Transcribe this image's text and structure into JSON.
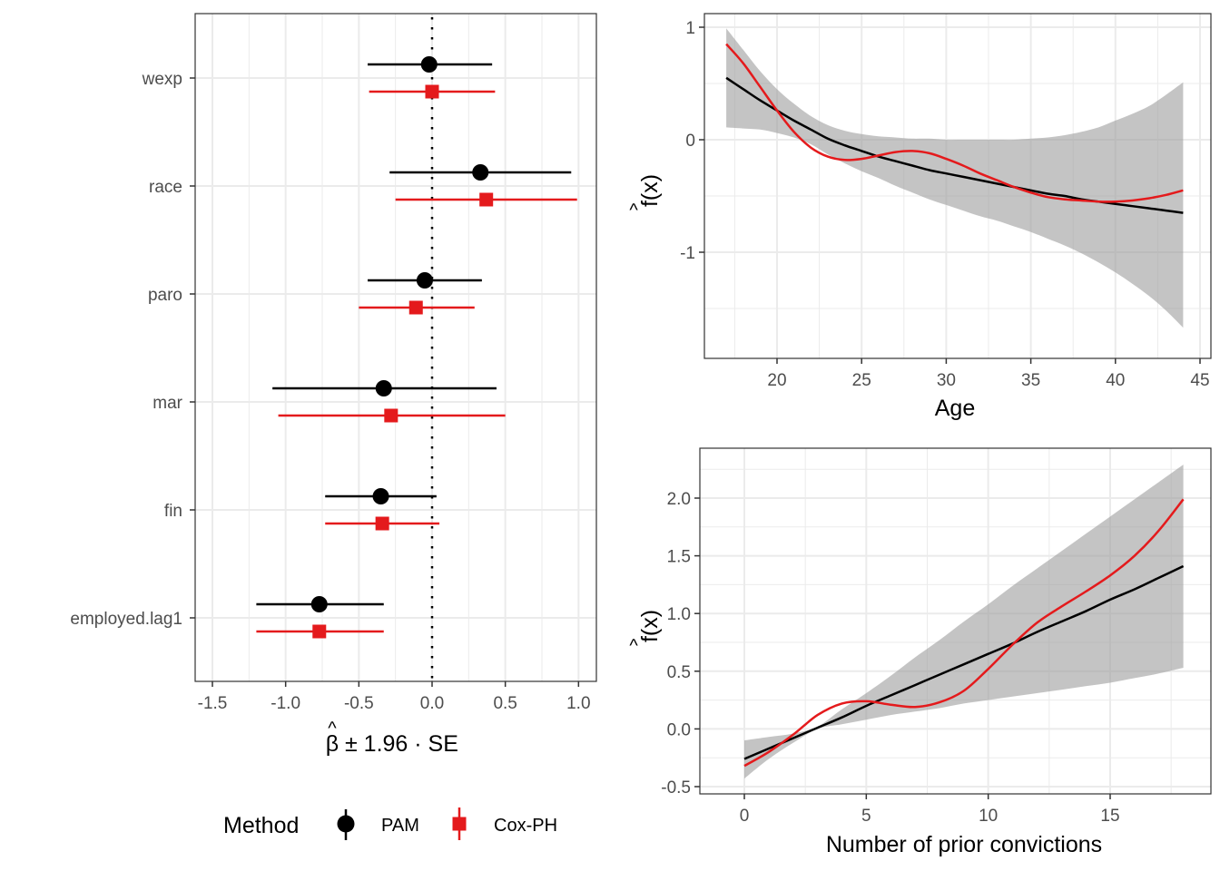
{
  "colors": {
    "pam": "#000000",
    "cox": "#E41A1C",
    "ribbon": "#BEBEBE",
    "grid": "#EBEBEB",
    "panel_border": "#333333",
    "tick_text": "#4D4D4D"
  },
  "chart_data": [
    {
      "id": "coef-plot",
      "type": "scatter",
      "subtype": "dot-and-whisker",
      "title": "",
      "xlabel": "β̂ ± 1.96 · SE",
      "xlabel_parts": {
        "beta": "β",
        "hat": "^",
        "rest": "± 1.96 · SE"
      },
      "ylabel": "",
      "xlim": [
        -1.62,
        1.12
      ],
      "xticks": [
        -1.5,
        -1.0,
        -0.5,
        0.0,
        0.5,
        1.0
      ],
      "xtick_labels": [
        "-1.5",
        "-1.0",
        "-0.5",
        "0.0",
        "0.5",
        "1.0"
      ],
      "categories": [
        "wexp",
        "race",
        "paro",
        "mar",
        "fin",
        "employed.lag1"
      ],
      "reference_line": {
        "x": 0,
        "style": "dotted"
      },
      "grid": true,
      "series": [
        {
          "name": "PAM",
          "marker": "circle",
          "estimates": [
            -0.02,
            0.33,
            -0.05,
            -0.33,
            -0.35,
            -0.77
          ],
          "lower": [
            -0.44,
            -0.29,
            -0.44,
            -1.09,
            -0.73,
            -1.2
          ],
          "upper": [
            0.41,
            0.95,
            0.34,
            0.44,
            0.03,
            -0.33
          ]
        },
        {
          "name": "Cox-PH",
          "marker": "square",
          "estimates": [
            0.0,
            0.37,
            -0.11,
            -0.28,
            -0.34,
            -0.77
          ],
          "lower": [
            -0.43,
            -0.25,
            -0.5,
            -1.05,
            -0.73,
            -1.2
          ],
          "upper": [
            0.43,
            0.99,
            0.29,
            0.5,
            0.05,
            -0.33
          ]
        }
      ],
      "legend": {
        "title": "Method",
        "position": "bottom",
        "entries": [
          "PAM",
          "Cox-PH"
        ]
      }
    },
    {
      "id": "age-smooth",
      "type": "line",
      "title": "",
      "xlabel": "Age",
      "ylabel": "f̂(x)",
      "ylabel_parts": {
        "f": "f(x)",
        "hat": "^"
      },
      "xlim": [
        15.4,
        45.6
      ],
      "ylim": [
        -1.9,
        1.12
      ],
      "xticks": [
        20,
        25,
        30,
        35,
        40,
        45
      ],
      "yticks": [
        -1,
        0,
        1
      ],
      "ytick_labels": [
        "-1",
        "0",
        "1"
      ],
      "grid": true,
      "x": [
        17,
        18,
        19,
        20,
        21,
        22,
        23,
        24,
        25,
        26,
        27,
        28,
        29,
        30,
        31,
        32,
        33,
        34,
        35,
        36,
        37,
        38,
        39,
        40,
        41,
        42,
        43,
        44
      ],
      "series": [
        {
          "name": "PAM",
          "values": [
            0.55,
            0.45,
            0.35,
            0.26,
            0.17,
            0.09,
            0.01,
            -0.05,
            -0.1,
            -0.15,
            -0.19,
            -0.23,
            -0.27,
            -0.3,
            -0.33,
            -0.36,
            -0.39,
            -0.42,
            -0.45,
            -0.48,
            -0.5,
            -0.53,
            -0.55,
            -0.57,
            -0.59,
            -0.61,
            -0.63,
            -0.65
          ]
        },
        {
          "name": "Cox-PH",
          "values": [
            0.85,
            0.68,
            0.47,
            0.26,
            0.07,
            -0.07,
            -0.15,
            -0.18,
            -0.17,
            -0.14,
            -0.11,
            -0.1,
            -0.12,
            -0.17,
            -0.23,
            -0.3,
            -0.36,
            -0.42,
            -0.47,
            -0.51,
            -0.53,
            -0.54,
            -0.55,
            -0.55,
            -0.54,
            -0.52,
            -0.49,
            -0.45
          ]
        },
        {
          "name": "PAM 95% band",
          "lower": [
            0.11,
            0.1,
            0.09,
            0.06,
            0.02,
            -0.04,
            -0.13,
            -0.21,
            -0.28,
            -0.34,
            -0.41,
            -0.47,
            -0.53,
            -0.58,
            -0.63,
            -0.68,
            -0.72,
            -0.77,
            -0.82,
            -0.88,
            -0.94,
            -1.01,
            -1.09,
            -1.18,
            -1.28,
            -1.39,
            -1.52,
            -1.67
          ],
          "upper": [
            0.99,
            0.8,
            0.61,
            0.45,
            0.32,
            0.21,
            0.13,
            0.08,
            0.05,
            0.03,
            0.02,
            0.01,
            0.01,
            0.0,
            0.0,
            0.0,
            0.0,
            0.0,
            0.01,
            0.02,
            0.04,
            0.07,
            0.11,
            0.17,
            0.23,
            0.3,
            0.4,
            0.51
          ]
        }
      ]
    },
    {
      "id": "prio-smooth",
      "type": "line",
      "title": "",
      "xlabel": "Number of prior convictions",
      "ylabel": "f̂(x)",
      "ylabel_parts": {
        "f": "f(x)",
        "hat": "^"
      },
      "xlim": [
        -0.9,
        18.9
      ],
      "ylim": [
        -0.56,
        2.43
      ],
      "xticks": [
        0,
        5,
        10,
        15
      ],
      "yticks": [
        -0.5,
        0.0,
        0.5,
        1.0,
        1.5,
        2.0
      ],
      "ytick_labels": [
        "-0.5",
        "0.0",
        "0.5",
        "1.0",
        "1.5",
        "2.0"
      ],
      "grid": true,
      "x": [
        0,
        1,
        2,
        3,
        4,
        5,
        6,
        7,
        8,
        9,
        10,
        11,
        12,
        13,
        14,
        15,
        16,
        17,
        18
      ],
      "series": [
        {
          "name": "PAM",
          "values": [
            -0.26,
            -0.17,
            -0.08,
            0.01,
            0.1,
            0.2,
            0.29,
            0.38,
            0.47,
            0.56,
            0.65,
            0.74,
            0.84,
            0.93,
            1.02,
            1.12,
            1.21,
            1.31,
            1.41
          ]
        },
        {
          "name": "Cox-PH",
          "values": [
            -0.32,
            -0.2,
            -0.05,
            0.12,
            0.22,
            0.24,
            0.21,
            0.19,
            0.23,
            0.33,
            0.52,
            0.73,
            0.92,
            1.06,
            1.19,
            1.33,
            1.5,
            1.72,
            1.99
          ]
        },
        {
          "name": "PAM 95% band",
          "lower": [
            -0.43,
            -0.26,
            -0.12,
            0.0,
            0.04,
            0.08,
            0.12,
            0.15,
            0.18,
            0.22,
            0.25,
            0.28,
            0.31,
            0.34,
            0.37,
            0.4,
            0.44,
            0.48,
            0.53
          ],
          "upper": [
            -0.1,
            -0.07,
            -0.04,
            0.02,
            0.17,
            0.31,
            0.46,
            0.62,
            0.77,
            0.93,
            1.08,
            1.24,
            1.39,
            1.54,
            1.69,
            1.84,
            1.99,
            2.14,
            2.29
          ]
        }
      ]
    }
  ]
}
